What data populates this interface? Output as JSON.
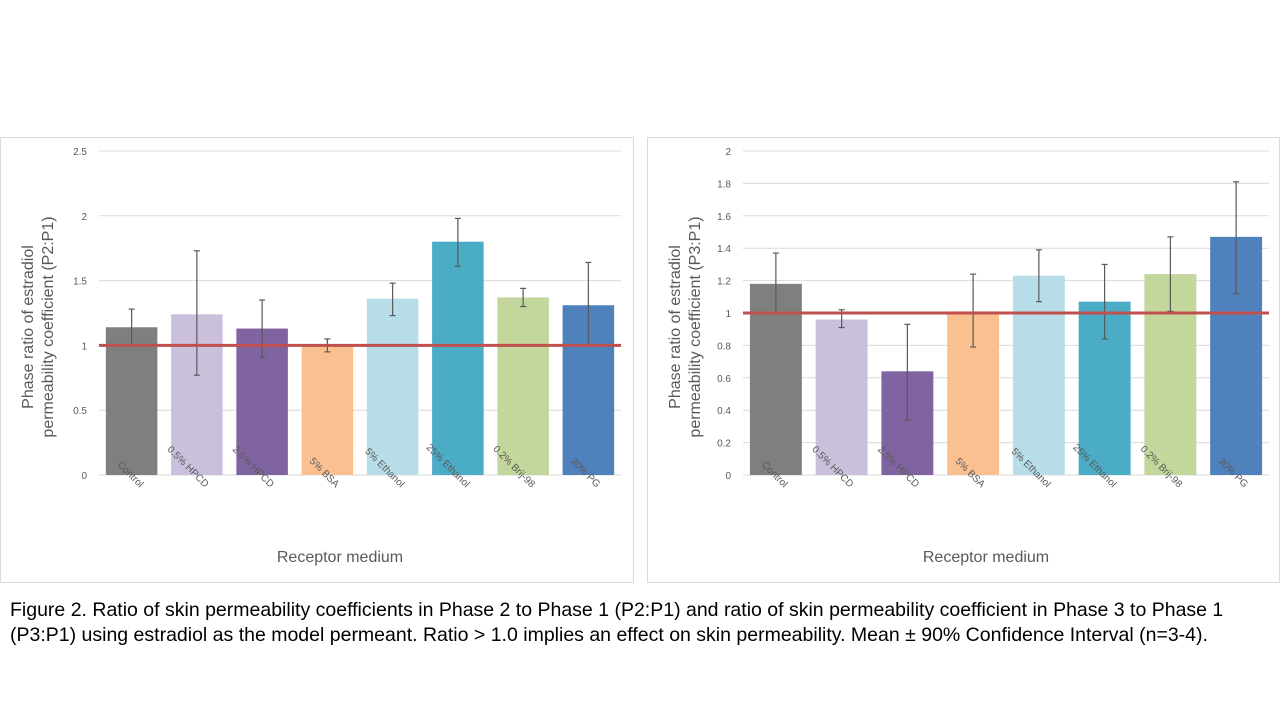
{
  "caption": "Figure 2.  Ratio of skin permeability coefficients in Phase 2 to Phase 1 (P2:P1) and ratio of skin permeability coefficient in Phase 3 to Phase 1 (P3:P1)  using estradiol as the model permeant.  Ratio > 1.0 implies an effect on skin permeability.  Mean ± 90% Confidence Interval (n=3-4).",
  "chart_data": [
    {
      "type": "bar",
      "title": "",
      "xlabel": "Receptor medium",
      "ylabel": [
        "Phase ratio of estradiol",
        "permeability coefficient (P2:P1)"
      ],
      "ylim": [
        0,
        2.5
      ],
      "yticks": [
        "0",
        "0.5",
        "1",
        "1.5",
        "2",
        "2.5"
      ],
      "ytick_values": [
        0,
        0.5,
        1,
        1.5,
        2,
        2.5
      ],
      "grid": true,
      "reference_line": {
        "value": 1,
        "color": "#c0504d"
      },
      "categories": [
        "Control",
        "0.5% HPCD",
        "2.5% HPCD",
        "5% BSA",
        "5% Ethanol",
        "25% Ethanol",
        "0.2% Brij-98",
        "30% PG"
      ],
      "colors": [
        "#7f7f7f",
        "#cbc0dc",
        "#8064a2",
        "#fac090",
        "#b7dde8",
        "#4bacc6",
        "#c3d69b",
        "#4f81bd"
      ],
      "values": [
        1.14,
        1.24,
        1.13,
        1.0,
        1.36,
        1.8,
        1.37,
        1.31
      ],
      "err_upper": [
        1.28,
        1.73,
        1.35,
        1.05,
        1.48,
        1.98,
        1.44,
        1.64
      ],
      "err_lower": [
        1.0,
        0.77,
        0.91,
        0.95,
        1.23,
        1.61,
        1.3,
        1.0
      ]
    },
    {
      "type": "bar",
      "title": "",
      "xlabel": "Receptor medium",
      "ylabel": [
        "Phase ratio of estradiol",
        "permeability coefficient (P3:P1)"
      ],
      "ylim": [
        0,
        2
      ],
      "yticks": [
        "0",
        "0.2",
        "0.4",
        "0.6",
        "0.8",
        "1",
        "1.2",
        "1.4",
        "1.6",
        "1.8",
        "2"
      ],
      "ytick_values": [
        0,
        0.2,
        0.4,
        0.6,
        0.8,
        1,
        1.2,
        1.4,
        1.6,
        1.8,
        2
      ],
      "grid": true,
      "reference_line": {
        "value": 1,
        "color": "#c0504d"
      },
      "categories": [
        "Control",
        "0.5% HPCD",
        "2.5% HPCD",
        "5% BSA",
        "5% Ethanol",
        "25% Ethanol",
        "0.2% Brij-98",
        "30% PG"
      ],
      "colors": [
        "#7f7f7f",
        "#cbc0dc",
        "#8064a2",
        "#fac090",
        "#b7dde8",
        "#4bacc6",
        "#c3d69b",
        "#4f81bd"
      ],
      "values": [
        1.18,
        0.96,
        0.64,
        1.01,
        1.23,
        1.07,
        1.24,
        1.47
      ],
      "err_upper": [
        1.37,
        1.02,
        0.93,
        1.24,
        1.39,
        1.3,
        1.47,
        1.81
      ],
      "err_lower": [
        1.0,
        0.91,
        0.34,
        0.79,
        1.07,
        0.84,
        1.01,
        1.12
      ]
    }
  ]
}
